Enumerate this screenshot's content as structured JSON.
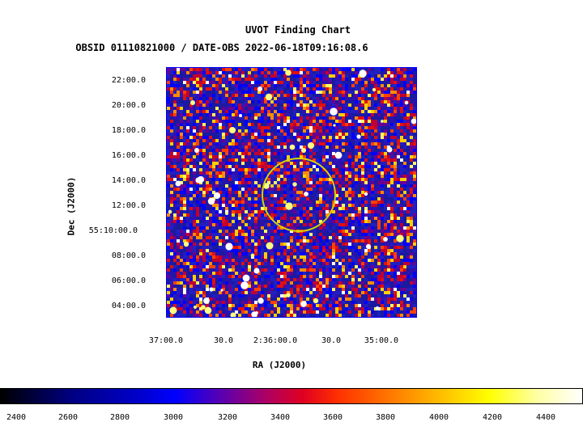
{
  "chart": {
    "title": "UVOT Finding Chart",
    "subtitle": "OBSID 01110821000 / DATE-OBS 2022-06-18T09:16:08.6",
    "ylabel": "Dec (J2000)",
    "xlabel": "RA (J2000)",
    "yticks": [
      "22:00.0",
      "20:00.0",
      "18:00.0",
      "16:00.0",
      "14:00.0",
      "12:00.0",
      "55:10:00.0",
      "08:00.0",
      "06:00.0",
      "04:00.0"
    ],
    "xticks": [
      "37:00.0",
      "30.0",
      "2:36:00.0",
      "30.0",
      "35:00.0"
    ],
    "colorbar_ticks": [
      "2400",
      "2600",
      "2800",
      "3000",
      "3200",
      "3400",
      "3600",
      "3800",
      "4000",
      "4200",
      "4400"
    ]
  },
  "colors": {
    "frame": "#0000ff",
    "circle": "#d4d400",
    "background_field": "#1a1aa0"
  },
  "chart_data": {
    "type": "heatmap",
    "colorbar_range": [
      2300,
      4500
    ],
    "colormap": "black-blue-red-yellow-white",
    "target_circle": "yellow circle near image center"
  }
}
